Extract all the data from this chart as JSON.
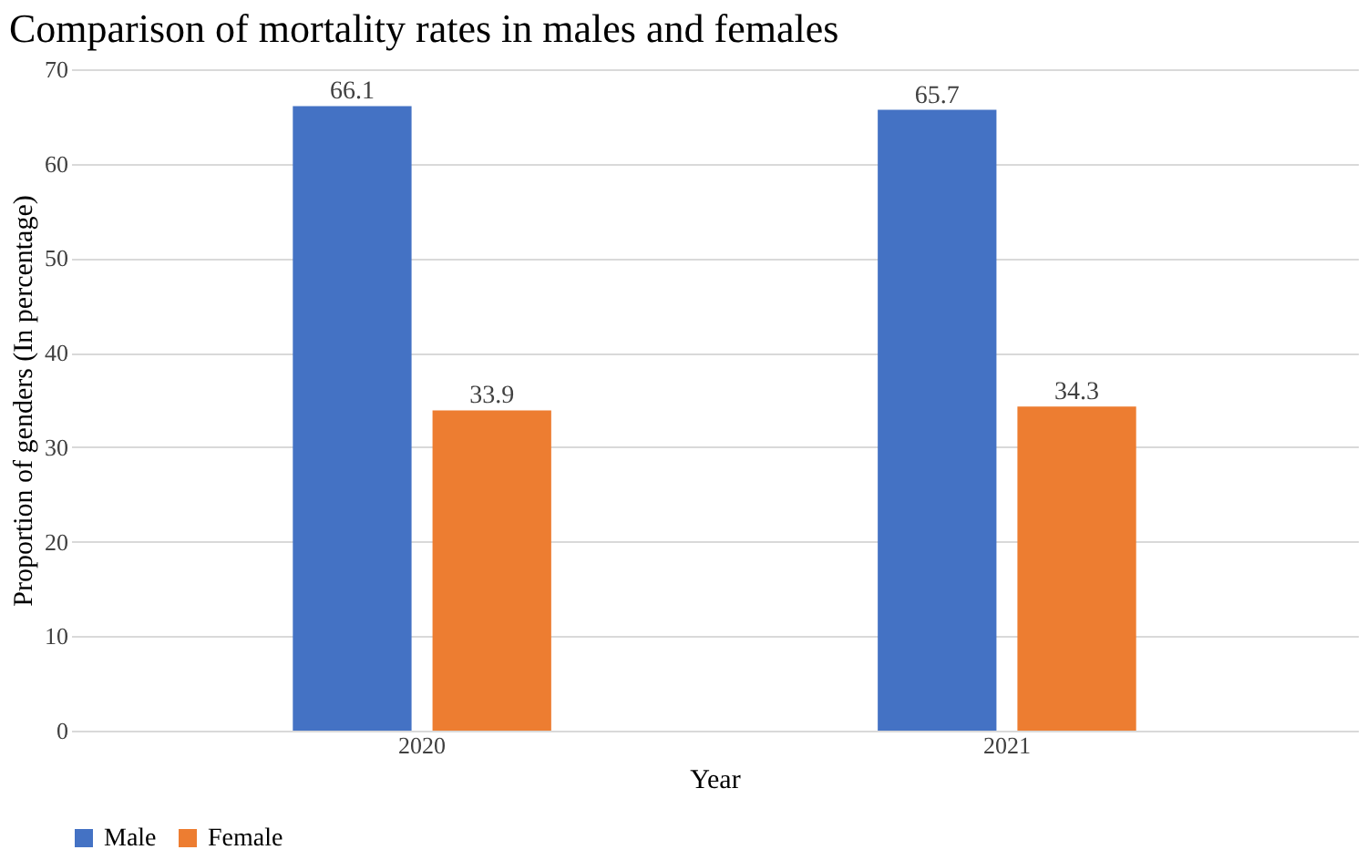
{
  "chart_data": {
    "type": "bar",
    "title": "Comparison of mortality rates in males and females",
    "xlabel": "Year",
    "ylabel": "Proportion of genders (In percentage)",
    "categories": [
      "2020",
      "2021"
    ],
    "series": [
      {
        "name": "Male",
        "color": "#4472c4",
        "values": [
          66.1,
          65.7
        ]
      },
      {
        "name": "Female",
        "color": "#ed7d31",
        "values": [
          33.9,
          34.3
        ]
      }
    ],
    "ylim": [
      0,
      70
    ],
    "yticks": [
      0,
      10,
      20,
      30,
      40,
      50,
      60,
      70
    ],
    "grid": "y",
    "legend": "bottom",
    "data_labels": true
  }
}
